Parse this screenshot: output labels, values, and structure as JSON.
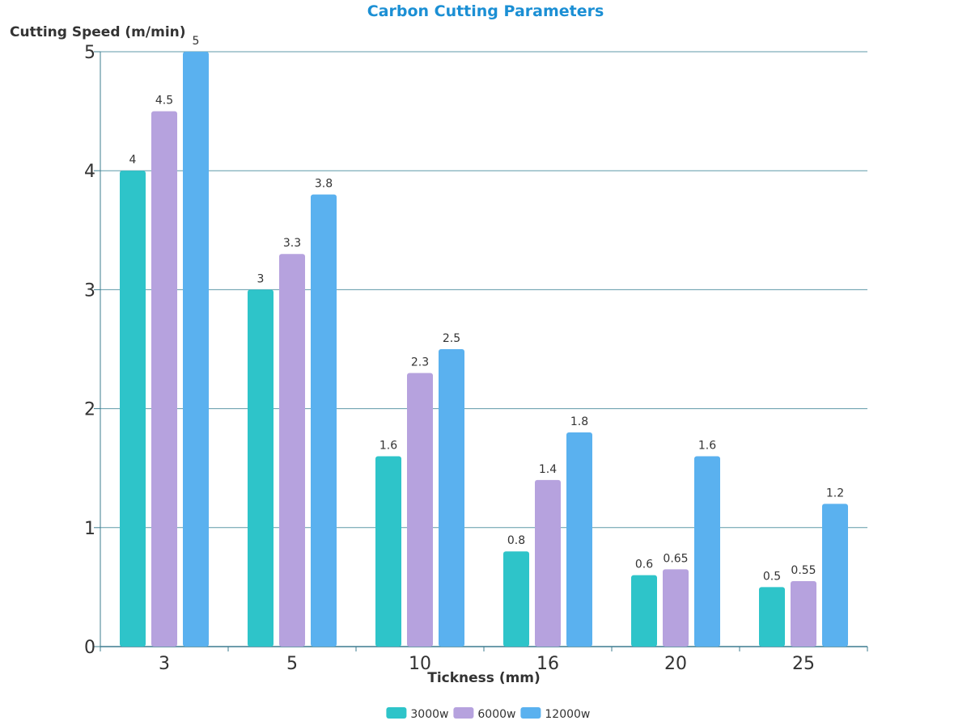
{
  "chart_data": {
    "type": "bar",
    "title": "Carbon Cutting Parameters",
    "xlabel": "Tickness (mm)",
    "ylabel": "Cutting Speed (m/min)",
    "categories": [
      "3",
      "5",
      "10",
      "16",
      "20",
      "25"
    ],
    "ylim": [
      0,
      5
    ],
    "yticks": [
      "0",
      "1",
      "2",
      "3",
      "4",
      "5"
    ],
    "grid": true,
    "legend_position": "bottom",
    "series": [
      {
        "name": "3000w",
        "color": "#2ec4c9",
        "values": [
          4,
          3,
          1.6,
          0.8,
          0.6,
          0.5
        ],
        "labels": [
          "4",
          "3",
          "1.6",
          "0.8",
          "0.6",
          "0.5"
        ]
      },
      {
        "name": "6000w",
        "color": "#b6a2de",
        "values": [
          4.5,
          3.3,
          2.3,
          1.4,
          0.65,
          0.55
        ],
        "labels": [
          "4.5",
          "3.3",
          "2.3",
          "1.4",
          "0.65",
          "0.55"
        ]
      },
      {
        "name": "12000w",
        "color": "#5ab1ef",
        "values": [
          5,
          3.8,
          2.5,
          1.8,
          1.6,
          1.2
        ],
        "labels": [
          "5",
          "3.8",
          "2.5",
          "1.8",
          "1.6",
          "1.2"
        ]
      }
    ]
  },
  "colors": {
    "title": "#1b8fd4",
    "axis_line": "#3d7c8f",
    "grid": "#5f9aa8",
    "text": "#333333"
  }
}
